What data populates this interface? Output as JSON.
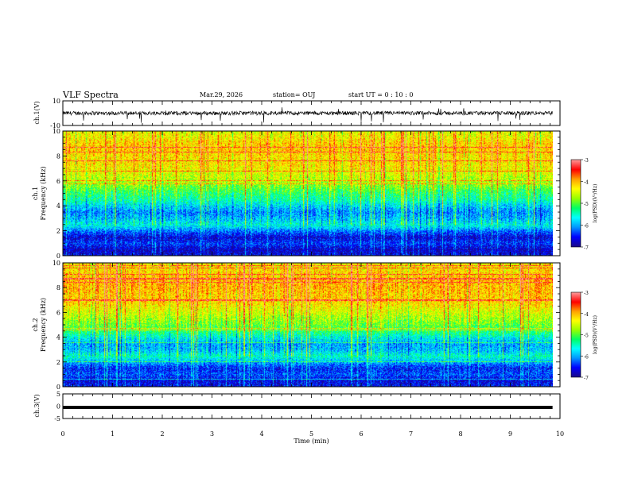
{
  "header": {
    "title": "VLF Spectra",
    "date": "Mar.29, 2026",
    "station": "station= OUJ",
    "start": "start  UT  =   0  : 10 : 0"
  },
  "colors": {
    "waveform": "#000000",
    "axis": "#000000",
    "colormap": [
      "#1a0a8c",
      "#0000ff",
      "#0096ff",
      "#00ffff",
      "#00ff64",
      "#96ff00",
      "#ffff00",
      "#ffa000",
      "#ff0000",
      "#ff9696"
    ]
  },
  "chart_data": [
    {
      "type": "line",
      "panel": "ch1-waveform",
      "ylabel": "ch.1(V)",
      "ylim": [
        -10,
        10
      ],
      "yticks": [
        "10",
        "-10"
      ],
      "xlim": [
        0,
        10
      ],
      "baseline": 0,
      "notes": "dense noisy signal centred near 0 V with occasional negative spikes"
    },
    {
      "type": "heatmap",
      "panel": "ch1-spectrogram",
      "ylabel": "ch.1",
      "ylabel2": "Frequency  (kHz)",
      "ylim": [
        0,
        10
      ],
      "yticks": [
        "0",
        "2",
        "4",
        "6",
        "8",
        "10"
      ],
      "xlim": [
        0,
        10
      ],
      "data_end_min": 9.85,
      "band_profile": {
        "freq_khz": [
          0,
          0.5,
          1,
          1.5,
          2,
          2.5,
          3,
          3.5,
          4,
          4.5,
          5,
          5.5,
          6,
          6.5,
          7,
          7.5,
          8,
          8.5,
          9,
          9.5,
          10
        ],
        "log_psd": [
          -6.6,
          -6.8,
          -6.4,
          -6.7,
          -6.2,
          -5.6,
          -5.9,
          -6.1,
          -5.8,
          -5.4,
          -5.2,
          -4.9,
          -4.6,
          -4.5,
          -4.3,
          -4.2,
          -4.2,
          -4.1,
          -4.1,
          -4.3,
          -4.4
        ]
      },
      "colorbar": {
        "label": "log(PSD)(V²/Hz)",
        "range": [
          -7,
          -3
        ],
        "ticks": [
          "-3",
          "-4",
          "-5",
          "-6",
          "-7"
        ]
      }
    },
    {
      "type": "heatmap",
      "panel": "ch2-spectrogram",
      "ylabel": "ch.2",
      "ylabel2": "Frequency  (kHz)",
      "ylim": [
        0,
        10
      ],
      "yticks": [
        "0",
        "2",
        "4",
        "6",
        "8",
        "10"
      ],
      "xlim": [
        0,
        10
      ],
      "data_end_min": 9.85,
      "band_profile": {
        "freq_khz": [
          0,
          0.5,
          1,
          1.5,
          2,
          2.5,
          3,
          3.5,
          4,
          4.5,
          5,
          5.5,
          6,
          6.5,
          7,
          7.5,
          8,
          8.5,
          9,
          9.5,
          10
        ],
        "log_psd": [
          -6.5,
          -6.7,
          -6.3,
          -6.5,
          -6.0,
          -5.5,
          -5.9,
          -6.0,
          -5.6,
          -5.2,
          -4.9,
          -4.7,
          -4.5,
          -4.3,
          -4.1,
          -4.1,
          -4.0,
          -4.0,
          -4.1,
          -4.2,
          -4.3
        ]
      },
      "colorbar": {
        "label": "log(PSD)(V²/Hz)",
        "range": [
          -7,
          -3
        ],
        "ticks": [
          "-3",
          "-4",
          "-5",
          "-6",
          "-7"
        ]
      }
    },
    {
      "type": "line",
      "panel": "ch3-waveform",
      "ylabel": "ch.3(V)",
      "ylim": [
        -5,
        5
      ],
      "yticks": [
        "5",
        "0",
        "-5"
      ],
      "xlim": [
        0,
        10
      ],
      "baseline": -0.5,
      "notes": "flat thick line slightly below 0 V"
    }
  ],
  "xaxis": {
    "label": "Time  (min)",
    "ticks": [
      "0",
      "1",
      "2",
      "3",
      "4",
      "5",
      "6",
      "7",
      "8",
      "9",
      "10"
    ]
  }
}
